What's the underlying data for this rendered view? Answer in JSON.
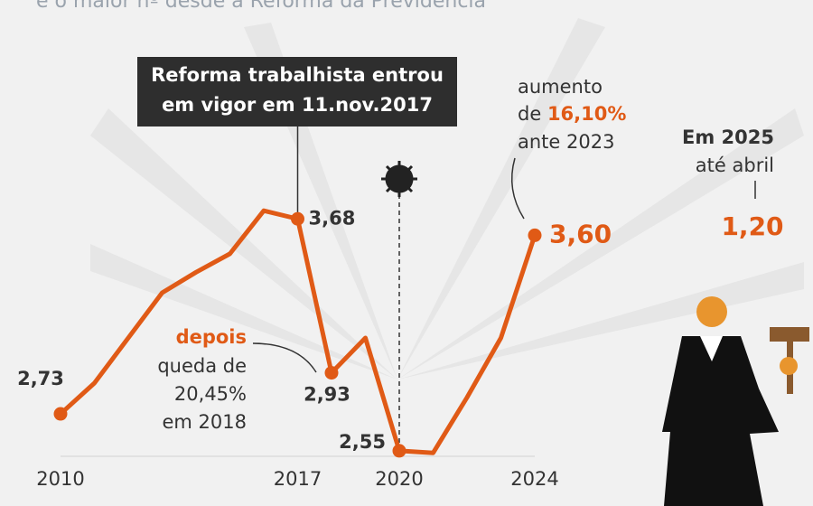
{
  "chart_data": {
    "type": "line",
    "subtitle": "e o maior nº desde a Reforma da Previdência",
    "x": [
      2010,
      2011,
      2012,
      2013,
      2014,
      2015,
      2016,
      2017,
      2018,
      2019,
      2020,
      2021,
      2022,
      2023,
      2024
    ],
    "series": [
      {
        "name": null,
        "color": "#e05a16",
        "values": [
          2.73,
          2.88,
          3.1,
          3.32,
          3.42,
          3.51,
          3.72,
          3.68,
          2.93,
          3.1,
          2.55,
          2.54,
          2.81,
          3.1,
          3.6
        ],
        "value_labels": [
          "2,73",
          null,
          null,
          null,
          null,
          null,
          null,
          "3,68",
          "2,93",
          null,
          "2,55",
          null,
          null,
          null,
          "3,60"
        ]
      }
    ],
    "xlim": [
      2010,
      2024
    ],
    "xticks": [
      2010,
      2017,
      2020,
      2024
    ],
    "ylim": [
      2.4,
      3.8
    ],
    "annotations": {
      "reform": [
        "Reforma trabalhista entrou",
        "em vigor em 11.nov.2017"
      ],
      "drop": {
        "lead": "depois",
        "lines": [
          "queda de",
          "20,45%",
          "em 2018"
        ]
      },
      "rise": {
        "line1": "aumento",
        "pre": "de ",
        "pct": "16,10%",
        "line3": "ante 2023"
      },
      "y2025": {
        "label": "Em 2025",
        "sub": "até abril",
        "value_label": "1,20"
      }
    }
  }
}
